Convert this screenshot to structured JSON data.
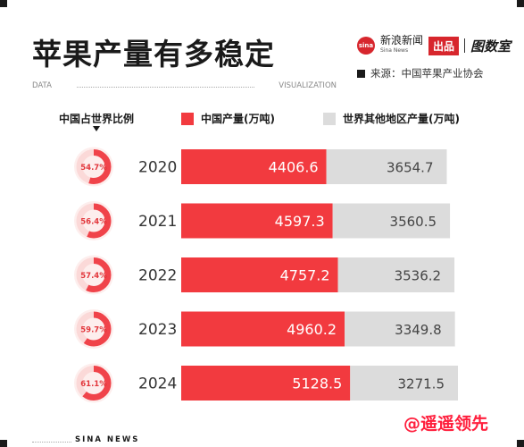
{
  "header": {
    "title": "苹果产量有多稳定",
    "brand_name": "新浪新闻",
    "brand_name_en": "Sina News",
    "brand_logo_text": "sina",
    "brand_tag": "出品",
    "brand_sub": "图数室",
    "source": "来源：中国苹果产业协会",
    "data_left": "DATA",
    "data_right": "VISUALIZATION"
  },
  "footer": {
    "text": "SINA NEWS",
    "watermark": "@遥遥领先"
  },
  "colors": {
    "china": "#f23a3f",
    "rest": "#dcdcdc",
    "ring_light": "#fbd9d8",
    "ring_dark": "#f0434a"
  },
  "chart_data": {
    "type": "bar",
    "stacked": true,
    "orientation": "horizontal",
    "title": "苹果产量有多稳定",
    "categories": [
      "2020",
      "2021",
      "2022",
      "2023",
      "2024"
    ],
    "share_label": "中国占世界比例",
    "share": [
      "54.7%",
      "56.4%",
      "57.4%",
      "59.7%",
      "61.1%"
    ],
    "share_values": [
      54.7,
      56.4,
      57.4,
      59.7,
      61.1
    ],
    "series": [
      {
        "name": "中国产量(万吨)",
        "values": [
          4406.6,
          4597.3,
          4757.2,
          4960.2,
          5128.5
        ]
      },
      {
        "name": "世界其他地区产量(万吨)",
        "values": [
          3654.7,
          3560.5,
          3536.2,
          3349.8,
          3271.5
        ]
      }
    ]
  }
}
